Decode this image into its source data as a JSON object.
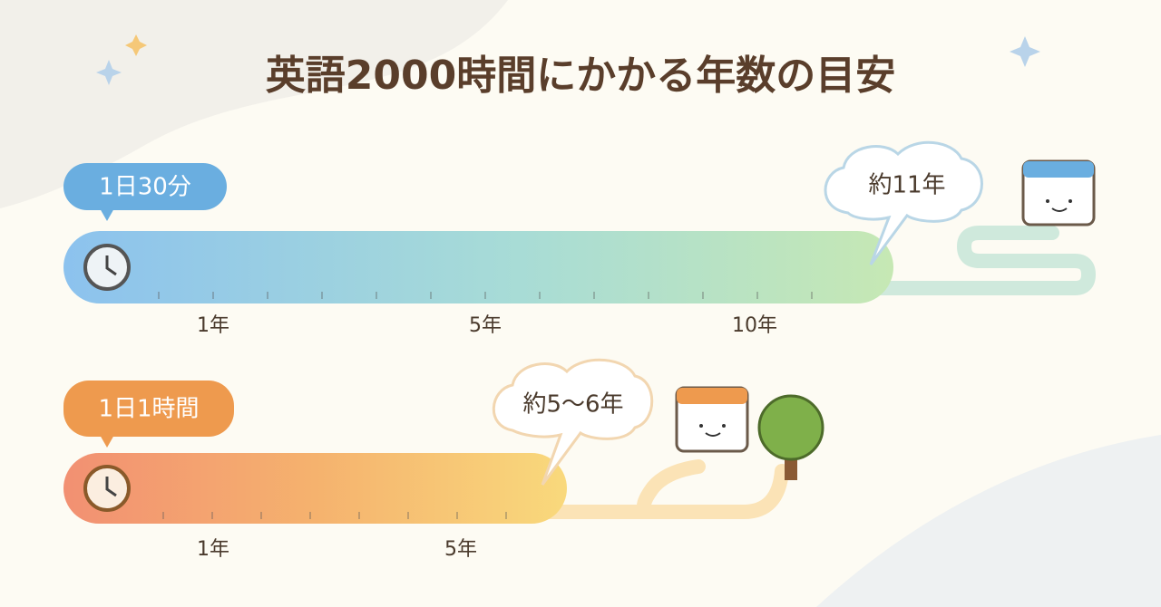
{
  "title": "英語2000時間にかかる年数の目安",
  "rows": [
    {
      "label": "1日30分",
      "estimate": "約11年",
      "ticks": [
        "1年",
        "5年",
        "10年"
      ]
    },
    {
      "label": "1日1時間",
      "estimate": "約5〜6年",
      "ticks": [
        "1年",
        "5年"
      ]
    }
  ]
}
